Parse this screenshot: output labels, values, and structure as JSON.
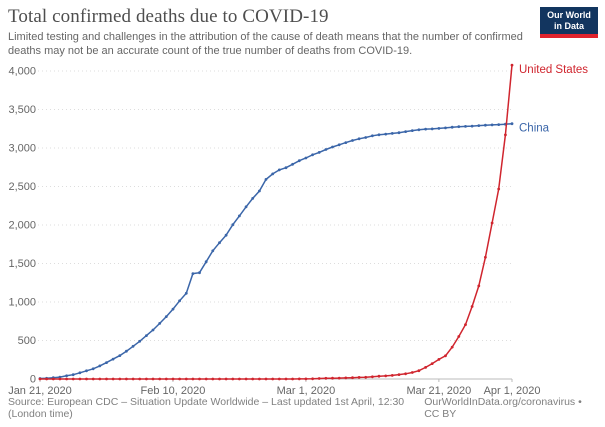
{
  "header": {
    "title": "Total confirmed deaths due to COVID-19",
    "subtitle": "Limited testing and challenges in the attribution of the cause of death means that the number of confirmed deaths may not be an accurate count of the true number of deaths from COVID-19.",
    "logo": {
      "line1": "Our World",
      "line2": "in Data",
      "bg_color": "#12355f",
      "stripe_color": "#e0232d"
    }
  },
  "footer": {
    "source": "Source: European CDC – Situation Update Worldwide – Last updated 1st April, 12:30 (London time)",
    "link": "OurWorldInData.org/coronavirus • CC BY"
  },
  "chart_data": {
    "type": "line",
    "title": "Total confirmed deaths due to COVID-19",
    "xlabel": "",
    "ylabel": "",
    "ylim": [
      0,
      4000
    ],
    "n_days": 72,
    "grid": "horizontal-dotted",
    "legend_position": "line-end-labels",
    "y_ticks": [
      0,
      500,
      1000,
      1500,
      2000,
      2500,
      3000,
      3500,
      4000
    ],
    "y_tick_labels": [
      "0",
      "500",
      "1,000",
      "1,500",
      "2,000",
      "2,500",
      "3,000",
      "3,500",
      "4,000"
    ],
    "x_ticks": [
      {
        "day": 0,
        "label": "Jan 21, 2020"
      },
      {
        "day": 20,
        "label": "Feb 10, 2020"
      },
      {
        "day": 40,
        "label": "Mar 1, 2020"
      },
      {
        "day": 60,
        "label": "Mar 21, 2020"
      },
      {
        "day": 71,
        "label": "Apr 1, 2020"
      }
    ],
    "x_range": [
      "Jan 21, 2020",
      "Apr 1, 2020"
    ],
    "series": [
      {
        "name": "United States",
        "color": "#d0252e",
        "values": [
          0,
          0,
          0,
          0,
          0,
          0,
          0,
          0,
          0,
          0,
          0,
          0,
          0,
          0,
          0,
          0,
          0,
          0,
          0,
          0,
          0,
          0,
          0,
          0,
          0,
          0,
          0,
          0,
          0,
          0,
          0,
          0,
          0,
          0,
          0,
          0,
          0,
          0,
          0,
          1,
          1,
          2,
          6,
          9,
          11,
          12,
          14,
          17,
          21,
          22,
          28,
          36,
          40,
          47,
          57,
          68,
          85,
          108,
          150,
          200,
          255,
          301,
          414,
          552,
          706,
          942,
          1209,
          1581,
          2026,
          2467,
          3170,
          4076
        ]
      },
      {
        "name": "China",
        "color": "#3b66a9",
        "values": [
          6,
          9,
          17,
          25,
          41,
          56,
          80,
          106,
          132,
          170,
          213,
          259,
          304,
          361,
          425,
          490,
          563,
          637,
          722,
          811,
          908,
          1016,
          1113,
          1369,
          1380,
          1523,
          1665,
          1770,
          1868,
          2004,
          2118,
          2236,
          2345,
          2442,
          2592,
          2663,
          2715,
          2744,
          2788,
          2835,
          2870,
          2912,
          2943,
          2981,
          3013,
          3042,
          3070,
          3097,
          3119,
          3136,
          3158,
          3172,
          3180,
          3189,
          3199,
          3213,
          3226,
          3237,
          3245,
          3248,
          3255,
          3261,
          3270,
          3277,
          3281,
          3285,
          3291,
          3296,
          3300,
          3304,
          3309,
          3316
        ]
      }
    ]
  }
}
